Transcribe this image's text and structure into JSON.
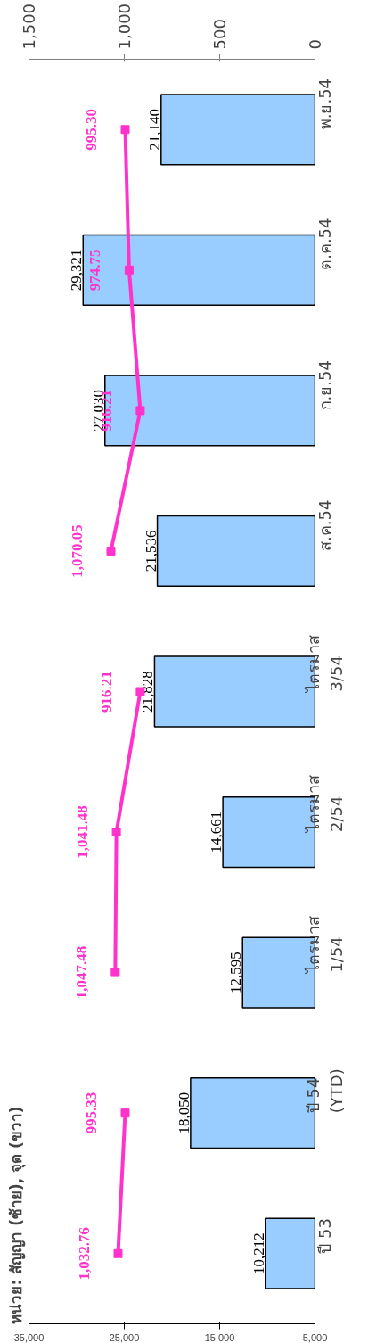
{
  "chart_data": {
    "type": "bar",
    "orientation": "horizontal",
    "title": "หน่วย: สัญญา (ซ้าย), จุด (ขวา)",
    "categories": [
      "พ.ย.54",
      "ต.ค.54",
      "ก.ย.54",
      "ส.ค.54",
      "ไตรมาส\n3/54",
      "ไตรมาส\n2/54",
      "ไตรมาส\n1/54",
      "ปี 54\n(YTD)",
      "ปี 53"
    ],
    "series": [
      {
        "color": "#99ccff",
        "values": [
          21140,
          29321,
          27030,
          21536,
          21828,
          14661,
          12595,
          18050,
          10212
        ],
        "value_labels": [
          "21,140",
          "29,321",
          "27,030",
          "21,536",
          "21,828",
          "14,661",
          "12,595",
          "18,050",
          "10,212"
        ]
      },
      {
        "type": "line",
        "axis": "x2",
        "color": "#ff33cc",
        "values": [
          995.3,
          974.75,
          916.21,
          1070.05,
          null,
          null,
          null,
          null,
          null
        ],
        "value_labels": [
          "995.30",
          "974.75",
          "916.21",
          "1,070.05",
          null,
          null,
          null,
          null,
          null
        ]
      },
      {
        "type": "line",
        "axis": "x2",
        "color": "#ff33cc",
        "values": [
          null,
          null,
          null,
          null,
          916.21,
          1041.48,
          1047.48,
          null,
          null
        ],
        "value_labels": [
          null,
          null,
          null,
          null,
          "916.21",
          "1,041.48",
          "1,047.48",
          null,
          null
        ]
      },
      {
        "type": "line",
        "axis": "x2",
        "color": "#ff33cc",
        "values": [
          null,
          null,
          null,
          null,
          null,
          null,
          null,
          995.33,
          1032.76
        ],
        "value_labels": [
          null,
          null,
          null,
          null,
          null,
          null,
          null,
          "995.33",
          "1,032.76"
        ]
      }
    ],
    "xlim": [
      35000,
      5000
    ],
    "xticks": [
      {
        "value": 5000,
        "label": "5,000"
      },
      {
        "value": 15000,
        "label": "15,000"
      },
      {
        "value": 25000,
        "label": "25,000"
      },
      {
        "value": 35000,
        "label": "35,000"
      }
    ],
    "x2lim": [
      1500,
      0
    ],
    "x2ticks": [
      0,
      500,
      {
        "value": 1000,
        "label": "1,000"
      },
      {
        "value": 1500,
        "label": "1,500"
      }
    ],
    "marker": "square",
    "grid": false
  }
}
